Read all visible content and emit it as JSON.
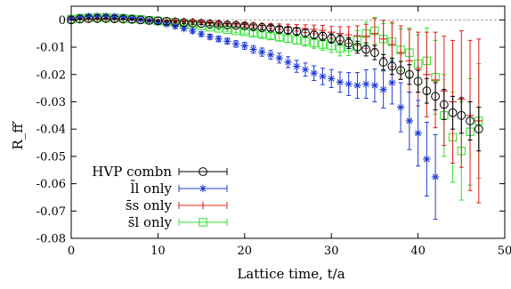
{
  "chart_data": {
    "type": "scatter",
    "title": "",
    "xlabel": "Lattice time, t/a",
    "ylabel": "R_ff′",
    "xlim": [
      0,
      50
    ],
    "ylim": [
      -0.08,
      0.005
    ],
    "xticks": [
      0,
      10,
      20,
      30,
      40,
      50
    ],
    "yticks": [
      0,
      -0.01,
      -0.02,
      -0.03,
      -0.04,
      -0.05,
      -0.06,
      -0.07,
      -0.08
    ],
    "xtick_labels": [
      "0",
      "10",
      "20",
      "30",
      "40",
      "50"
    ],
    "ytick_labels": [
      "0",
      "-0.01",
      "-0.02",
      "-0.03",
      "-0.04",
      "-0.05",
      "-0.06",
      "-0.07",
      "-0.08"
    ],
    "zero_line": true,
    "grid": false,
    "legend_position": "bottom-left",
    "series": [
      {
        "name": "HVP combn",
        "marker": "circle",
        "color": "#000000",
        "x": [
          0,
          1,
          2,
          3,
          4,
          5,
          6,
          7,
          8,
          9,
          10,
          11,
          12,
          13,
          14,
          15,
          16,
          17,
          18,
          19,
          20,
          21,
          22,
          23,
          24,
          25,
          26,
          27,
          28,
          29,
          30,
          31,
          32,
          33,
          34,
          35,
          36,
          37,
          38,
          39,
          40,
          41,
          42,
          43,
          44,
          45,
          46,
          47
        ],
        "y": [
          0,
          0.0003,
          0.0005,
          0.0005,
          0.0005,
          0.0004,
          0.0003,
          0.0002,
          0,
          -0.0002,
          -0.0003,
          -0.0005,
          -0.0008,
          -0.001,
          -0.0012,
          -0.0013,
          -0.0015,
          -0.0017,
          -0.0019,
          -0.002,
          -0.0022,
          -0.0025,
          -0.0028,
          -0.003,
          -0.0035,
          -0.0038,
          -0.0042,
          -0.0048,
          -0.0055,
          -0.006,
          -0.0068,
          -0.0073,
          -0.0085,
          -0.01,
          -0.0108,
          -0.012,
          -0.0155,
          -0.017,
          -0.0185,
          -0.02,
          -0.0225,
          -0.026,
          -0.028,
          -0.031,
          -0.034,
          -0.035,
          -0.037,
          -0.04
        ],
        "err": [
          0,
          0.0002,
          0.0002,
          0.0002,
          0.0002,
          0.0002,
          0.0002,
          0.0002,
          0.0002,
          0.0003,
          0.0003,
          0.0003,
          0.0003,
          0.0004,
          0.0004,
          0.0004,
          0.0005,
          0.0005,
          0.0005,
          0.0006,
          0.0007,
          0.0007,
          0.0008,
          0.0009,
          0.001,
          0.0011,
          0.0012,
          0.0013,
          0.0014,
          0.0015,
          0.0017,
          0.0018,
          0.002,
          0.0022,
          0.0024,
          0.0026,
          0.0028,
          0.003,
          0.0033,
          0.0036,
          0.004,
          0.0045,
          0.005,
          0.0055,
          0.006,
          0.0065,
          0.007,
          0.008
        ]
      },
      {
        "name": "l̄l only",
        "marker": "star",
        "color": "#1f3bd6",
        "x": [
          0,
          1,
          2,
          3,
          4,
          5,
          6,
          7,
          8,
          9,
          10,
          11,
          12,
          13,
          14,
          15,
          16,
          17,
          18,
          19,
          20,
          21,
          22,
          23,
          24,
          25,
          26,
          27,
          28,
          29,
          30,
          31,
          32,
          33,
          34,
          35,
          36,
          37,
          38,
          39,
          40,
          41,
          42
        ],
        "y": [
          0.0005,
          0.001,
          0.0013,
          0.0014,
          0.0014,
          0.0012,
          0.001,
          0.0006,
          0.0002,
          -0.0003,
          -0.0009,
          -0.0016,
          -0.0024,
          -0.0032,
          -0.0041,
          -0.0052,
          -0.0062,
          -0.007,
          -0.0078,
          -0.0088,
          -0.0095,
          -0.0108,
          -0.0118,
          -0.0128,
          -0.014,
          -0.0155,
          -0.017,
          -0.0182,
          -0.0195,
          -0.0207,
          -0.0215,
          -0.0228,
          -0.0235,
          -0.024,
          -0.0235,
          -0.024,
          -0.0255,
          -0.023,
          -0.032,
          -0.037,
          -0.0415,
          -0.051,
          -0.0575
        ],
        "err": [
          0.0002,
          0.0002,
          0.0002,
          0.0002,
          0.0002,
          0.0003,
          0.0003,
          0.0003,
          0.0004,
          0.0004,
          0.0005,
          0.0005,
          0.0006,
          0.0006,
          0.0007,
          0.0008,
          0.0009,
          0.001,
          0.0011,
          0.0012,
          0.0013,
          0.0014,
          0.0015,
          0.0016,
          0.0018,
          0.002,
          0.0022,
          0.0024,
          0.0027,
          0.003,
          0.0033,
          0.0037,
          0.0042,
          0.0047,
          0.0052,
          0.006,
          0.0068,
          0.0078,
          0.009,
          0.0105,
          0.012,
          0.0135,
          0.0155
        ]
      },
      {
        "name": "s̄s only",
        "marker": "plus",
        "color": "#e0201b",
        "x": [
          0,
          1,
          2,
          3,
          4,
          5,
          6,
          7,
          8,
          9,
          10,
          11,
          12,
          13,
          14,
          15,
          16,
          17,
          18,
          19,
          20,
          21,
          22,
          23,
          24,
          25,
          26,
          27,
          28,
          29,
          30,
          31,
          32,
          33,
          34,
          35,
          36,
          37,
          38,
          39,
          40,
          41,
          42,
          43,
          44,
          45,
          46,
          47
        ],
        "y": [
          0,
          0.0002,
          0.0003,
          0.0003,
          0.0003,
          0.0003,
          0.0002,
          0.0001,
          0,
          -0.0001,
          -0.0002,
          -0.0003,
          -0.0004,
          -0.0005,
          -0.0006,
          -0.0008,
          -0.001,
          -0.0012,
          -0.0013,
          -0.0015,
          -0.0017,
          -0.0019,
          -0.0021,
          -0.0023,
          -0.0025,
          -0.0027,
          -0.0029,
          -0.0032,
          -0.0035,
          -0.0038,
          -0.0045,
          -0.005,
          -0.0055,
          -0.0058,
          -0.006,
          -0.005,
          -0.007,
          -0.009,
          -0.012,
          -0.015,
          -0.018,
          -0.02,
          -0.022,
          -0.026,
          -0.03,
          -0.029,
          -0.035,
          -0.037
        ],
        "err": [
          0,
          0.0001,
          0.0001,
          0.0001,
          0.0001,
          0.0001,
          0.0001,
          0.0001,
          0.0002,
          0.0002,
          0.0002,
          0.0002,
          0.0003,
          0.0003,
          0.0003,
          0.0004,
          0.0004,
          0.0005,
          0.0005,
          0.0006,
          0.0006,
          0.0007,
          0.0008,
          0.0009,
          0.001,
          0.0011,
          0.0012,
          0.0014,
          0.0016,
          0.0018,
          0.0021,
          0.0025,
          0.003,
          0.0036,
          0.0044,
          0.0055,
          0.0068,
          0.0082,
          0.0098,
          0.0115,
          0.0135,
          0.0155,
          0.0175,
          0.02,
          0.0225,
          0.025,
          0.0275,
          0.03
        ]
      },
      {
        "name": "s̄l only",
        "marker": "square",
        "color": "#2ee02b",
        "x": [
          0,
          1,
          2,
          3,
          4,
          5,
          6,
          7,
          8,
          9,
          10,
          11,
          12,
          13,
          14,
          15,
          16,
          17,
          18,
          19,
          20,
          21,
          22,
          23,
          24,
          25,
          26,
          27,
          28,
          29,
          30,
          31,
          32,
          33,
          34,
          35,
          36,
          37,
          38,
          39,
          40,
          41,
          42,
          43,
          44,
          45,
          46,
          47
        ],
        "y": [
          0.0003,
          0.0006,
          0.0008,
          0.0008,
          0.0008,
          0.0007,
          0.0006,
          0.0004,
          0.0002,
          -0.0001,
          -0.0004,
          -0.0007,
          -0.001,
          -0.0014,
          -0.0018,
          -0.0022,
          -0.0027,
          -0.0031,
          -0.0036,
          -0.004,
          -0.0044,
          -0.0049,
          -0.0054,
          -0.0059,
          -0.0064,
          -0.0069,
          -0.0074,
          -0.0079,
          -0.0085,
          -0.009,
          -0.0095,
          -0.0105,
          -0.01,
          -0.0075,
          -0.005,
          -0.004,
          -0.007,
          -0.008,
          -0.011,
          -0.012,
          -0.016,
          -0.015,
          -0.021,
          -0.035,
          -0.043,
          -0.048,
          -0.041,
          -0.037
        ],
        "err": [
          0.0001,
          0.0001,
          0.0001,
          0.0001,
          0.0001,
          0.0001,
          0.0002,
          0.0002,
          0.0002,
          0.0002,
          0.0003,
          0.0003,
          0.0003,
          0.0004,
          0.0004,
          0.0005,
          0.0005,
          0.0006,
          0.0006,
          0.0007,
          0.0008,
          0.0009,
          0.001,
          0.0011,
          0.0012,
          0.0013,
          0.0015,
          0.0017,
          0.0019,
          0.0021,
          0.0024,
          0.0027,
          0.0031,
          0.0036,
          0.0042,
          0.0049,
          0.0057,
          0.0066,
          0.0077,
          0.009,
          0.0105,
          0.012,
          0.0135,
          0.015,
          0.0165,
          0.018,
          0.0195,
          0.021
        ]
      }
    ]
  }
}
